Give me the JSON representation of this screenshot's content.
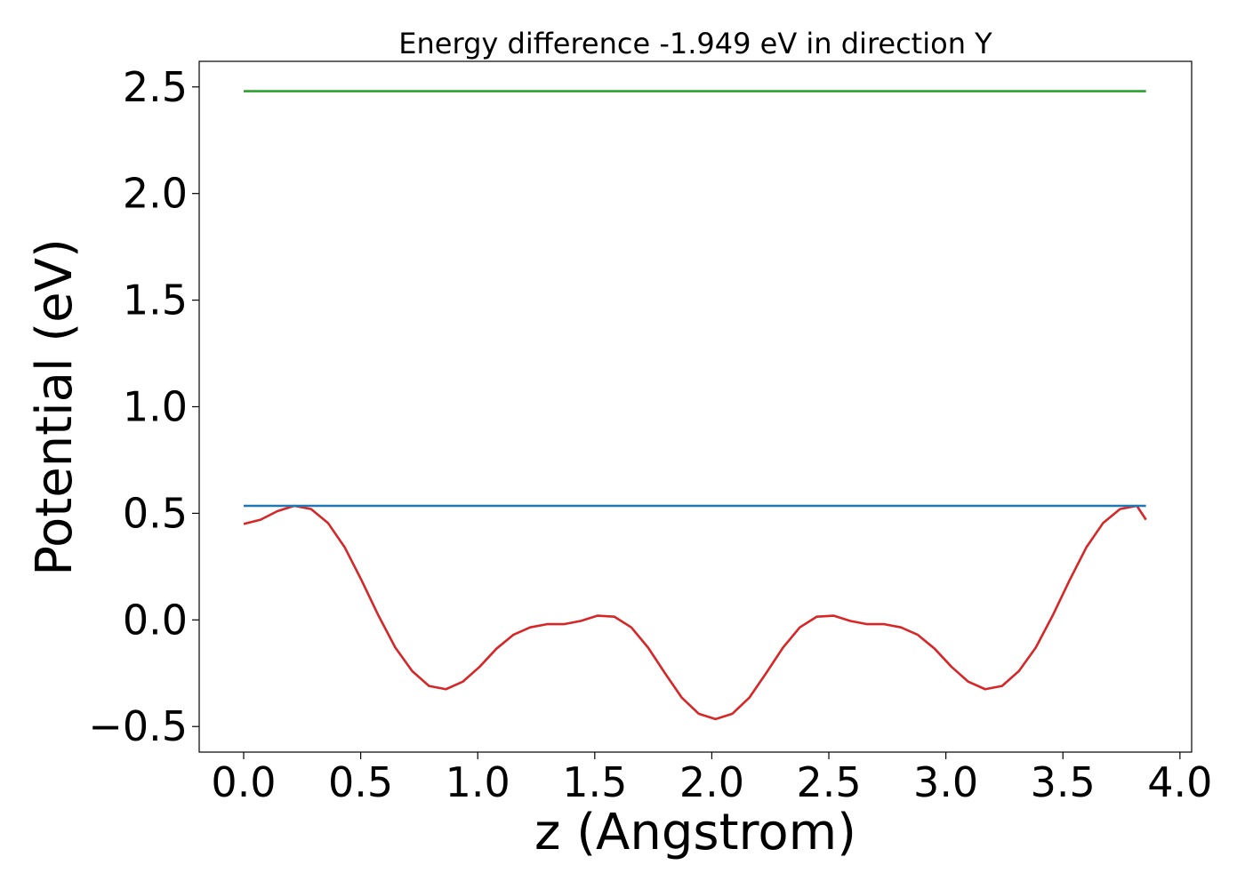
{
  "chart_data": {
    "type": "line",
    "title": "Energy difference -1.949 eV in direction Y",
    "xlabel": "z (Angstrom)",
    "ylabel": "Potential (eV)",
    "xlim": [
      -0.19,
      4.05
    ],
    "ylim": [
      -0.62,
      2.62
    ],
    "xticks": [
      0.0,
      0.5,
      1.0,
      1.5,
      2.0,
      2.5,
      3.0,
      3.5,
      4.0
    ],
    "xtick_labels": [
      "0.0",
      "0.5",
      "1.0",
      "1.5",
      "2.0",
      "2.5",
      "3.0",
      "3.5",
      "4.0"
    ],
    "yticks": [
      -0.5,
      0.0,
      0.5,
      1.0,
      1.5,
      2.0,
      2.5
    ],
    "ytick_labels": [
      "−0.5",
      "0.0",
      "0.5",
      "1.0",
      "1.5",
      "2.0",
      "2.5"
    ],
    "grid": false,
    "series": [
      {
        "color": "#d62728",
        "x": [
          0.0,
          0.072,
          0.144,
          0.216,
          0.288,
          0.36,
          0.432,
          0.504,
          0.576,
          0.648,
          0.72,
          0.792,
          0.864,
          0.936,
          1.008,
          1.08,
          1.152,
          1.224,
          1.296,
          1.368,
          1.44,
          1.512,
          1.584,
          1.656,
          1.728,
          1.8,
          1.872,
          1.944,
          2.016,
          2.088,
          2.16,
          2.232,
          2.304,
          2.376,
          2.448,
          2.52,
          2.592,
          2.664,
          2.736,
          2.808,
          2.88,
          2.952,
          3.024,
          3.096,
          3.168,
          3.24,
          3.312,
          3.384,
          3.456,
          3.528,
          3.6,
          3.672,
          3.744,
          3.816,
          3.855
        ],
        "y": [
          0.45,
          0.47,
          0.51,
          0.535,
          0.52,
          0.455,
          0.34,
          0.185,
          0.02,
          -0.13,
          -0.24,
          -0.31,
          -0.325,
          -0.29,
          -0.22,
          -0.135,
          -0.07,
          -0.035,
          -0.02,
          -0.02,
          -0.005,
          0.02,
          0.015,
          -0.035,
          -0.13,
          -0.25,
          -0.365,
          -0.44,
          -0.465,
          -0.44,
          -0.365,
          -0.25,
          -0.13,
          -0.035,
          0.015,
          0.02,
          -0.005,
          -0.02,
          -0.02,
          -0.035,
          -0.07,
          -0.135,
          -0.22,
          -0.29,
          -0.325,
          -0.31,
          -0.24,
          -0.13,
          0.02,
          0.185,
          0.34,
          0.455,
          0.52,
          0.535,
          0.47
        ]
      },
      {
        "color": "#1f77b4",
        "x": [
          0.0,
          3.855
        ],
        "y": [
          0.535,
          0.535
        ]
      },
      {
        "color": "#2ca02c",
        "x": [
          0.0,
          3.855
        ],
        "y": [
          2.48,
          2.48
        ]
      }
    ]
  }
}
